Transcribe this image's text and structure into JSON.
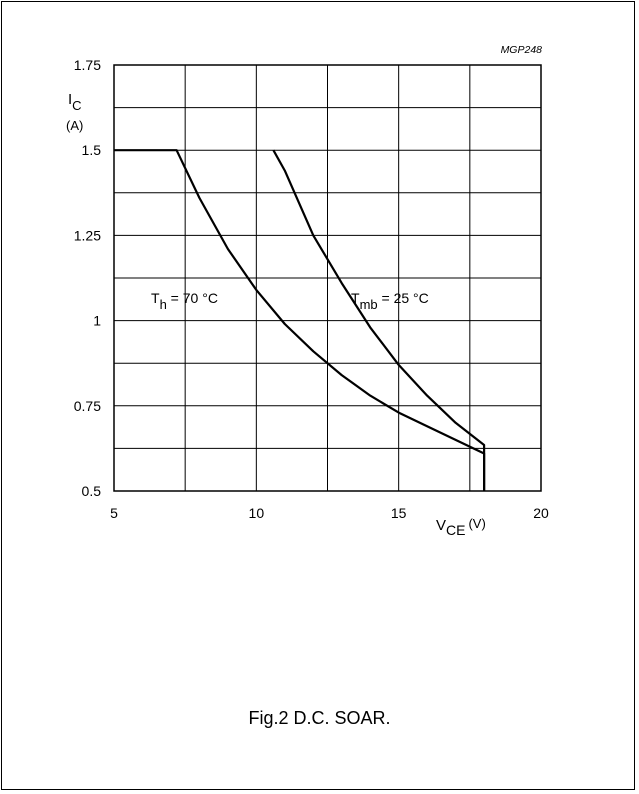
{
  "chart_data": {
    "type": "line",
    "code": "MGP248",
    "caption": "Fig.2  D.C. SOAR.",
    "xaxis": {
      "symbol": "V",
      "subscript": "CE",
      "unit": "(V)",
      "range": [
        5,
        20
      ],
      "ticks": [
        5,
        10,
        15,
        20
      ],
      "tick_labels": [
        "5",
        "10",
        "15",
        "20"
      ],
      "minor_step": 2.5
    },
    "yaxis": {
      "symbol": "I",
      "subscript": "C",
      "unit": "(A)",
      "range": [
        0.5,
        1.75
      ],
      "ticks": [
        0.5,
        0.75,
        1,
        1.25,
        1.5,
        1.75
      ],
      "tick_labels": [
        "0.5",
        "0.75",
        "1",
        "1.25",
        "1.5",
        "1.75"
      ],
      "minor_step": 0.125
    },
    "grid": true,
    "series": [
      {
        "label_main": "T",
        "label_sub": "h",
        "label_rest": " = 70 °C",
        "points": [
          [
            5,
            1.5
          ],
          [
            7.2,
            1.5
          ],
          [
            8,
            1.36
          ],
          [
            9,
            1.21
          ],
          [
            10,
            1.09
          ],
          [
            11,
            0.99
          ],
          [
            12,
            0.91
          ],
          [
            13,
            0.84
          ],
          [
            14,
            0.78
          ],
          [
            15,
            0.73
          ],
          [
            16,
            0.69
          ],
          [
            17,
            0.65
          ],
          [
            18,
            0.61
          ],
          [
            18,
            0.5
          ]
        ]
      },
      {
        "label_main": "T",
        "label_sub": "mb",
        "label_rest": " = 25 °C",
        "points": [
          [
            10.6,
            1.5
          ],
          [
            11,
            1.44
          ],
          [
            12,
            1.25
          ],
          [
            13,
            1.11
          ],
          [
            14,
            0.98
          ],
          [
            15,
            0.87
          ],
          [
            16,
            0.78
          ],
          [
            17,
            0.7
          ],
          [
            18,
            0.635
          ],
          [
            18,
            0.5
          ]
        ]
      }
    ]
  }
}
